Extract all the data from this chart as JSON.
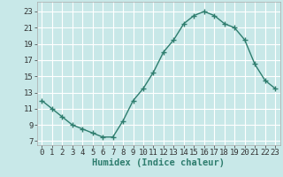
{
  "x": [
    0,
    1,
    2,
    3,
    4,
    5,
    6,
    7,
    8,
    9,
    10,
    11,
    12,
    13,
    14,
    15,
    16,
    17,
    18,
    19,
    20,
    21,
    22,
    23
  ],
  "y": [
    12,
    11,
    10,
    9,
    8.5,
    8,
    7.5,
    7.5,
    9.5,
    12,
    13.5,
    15.5,
    18,
    19.5,
    21.5,
    22.5,
    23,
    22.5,
    21.5,
    21,
    19.5,
    16.5,
    14.5,
    13.5
  ],
  "line_color": "#2e7d6e",
  "marker": "+",
  "markersize": 4,
  "linewidth": 1.0,
  "xlabel": "Humidex (Indice chaleur)",
  "xlabel_fontsize": 7.5,
  "ylabel_ticks": [
    7,
    9,
    11,
    13,
    15,
    17,
    19,
    21,
    23
  ],
  "xlim": [
    -0.5,
    23.5
  ],
  "ylim": [
    6.5,
    24.2
  ],
  "bg_color": "#c8e8e8",
  "grid_color": "#ffffff",
  "tick_fontsize": 6.5,
  "xtick_labels": [
    "0",
    "1",
    "2",
    "3",
    "4",
    "5",
    "6",
    "7",
    "8",
    "9",
    "10",
    "11",
    "12",
    "13",
    "14",
    "15",
    "16",
    "17",
    "18",
    "19",
    "20",
    "21",
    "22",
    "23"
  ]
}
